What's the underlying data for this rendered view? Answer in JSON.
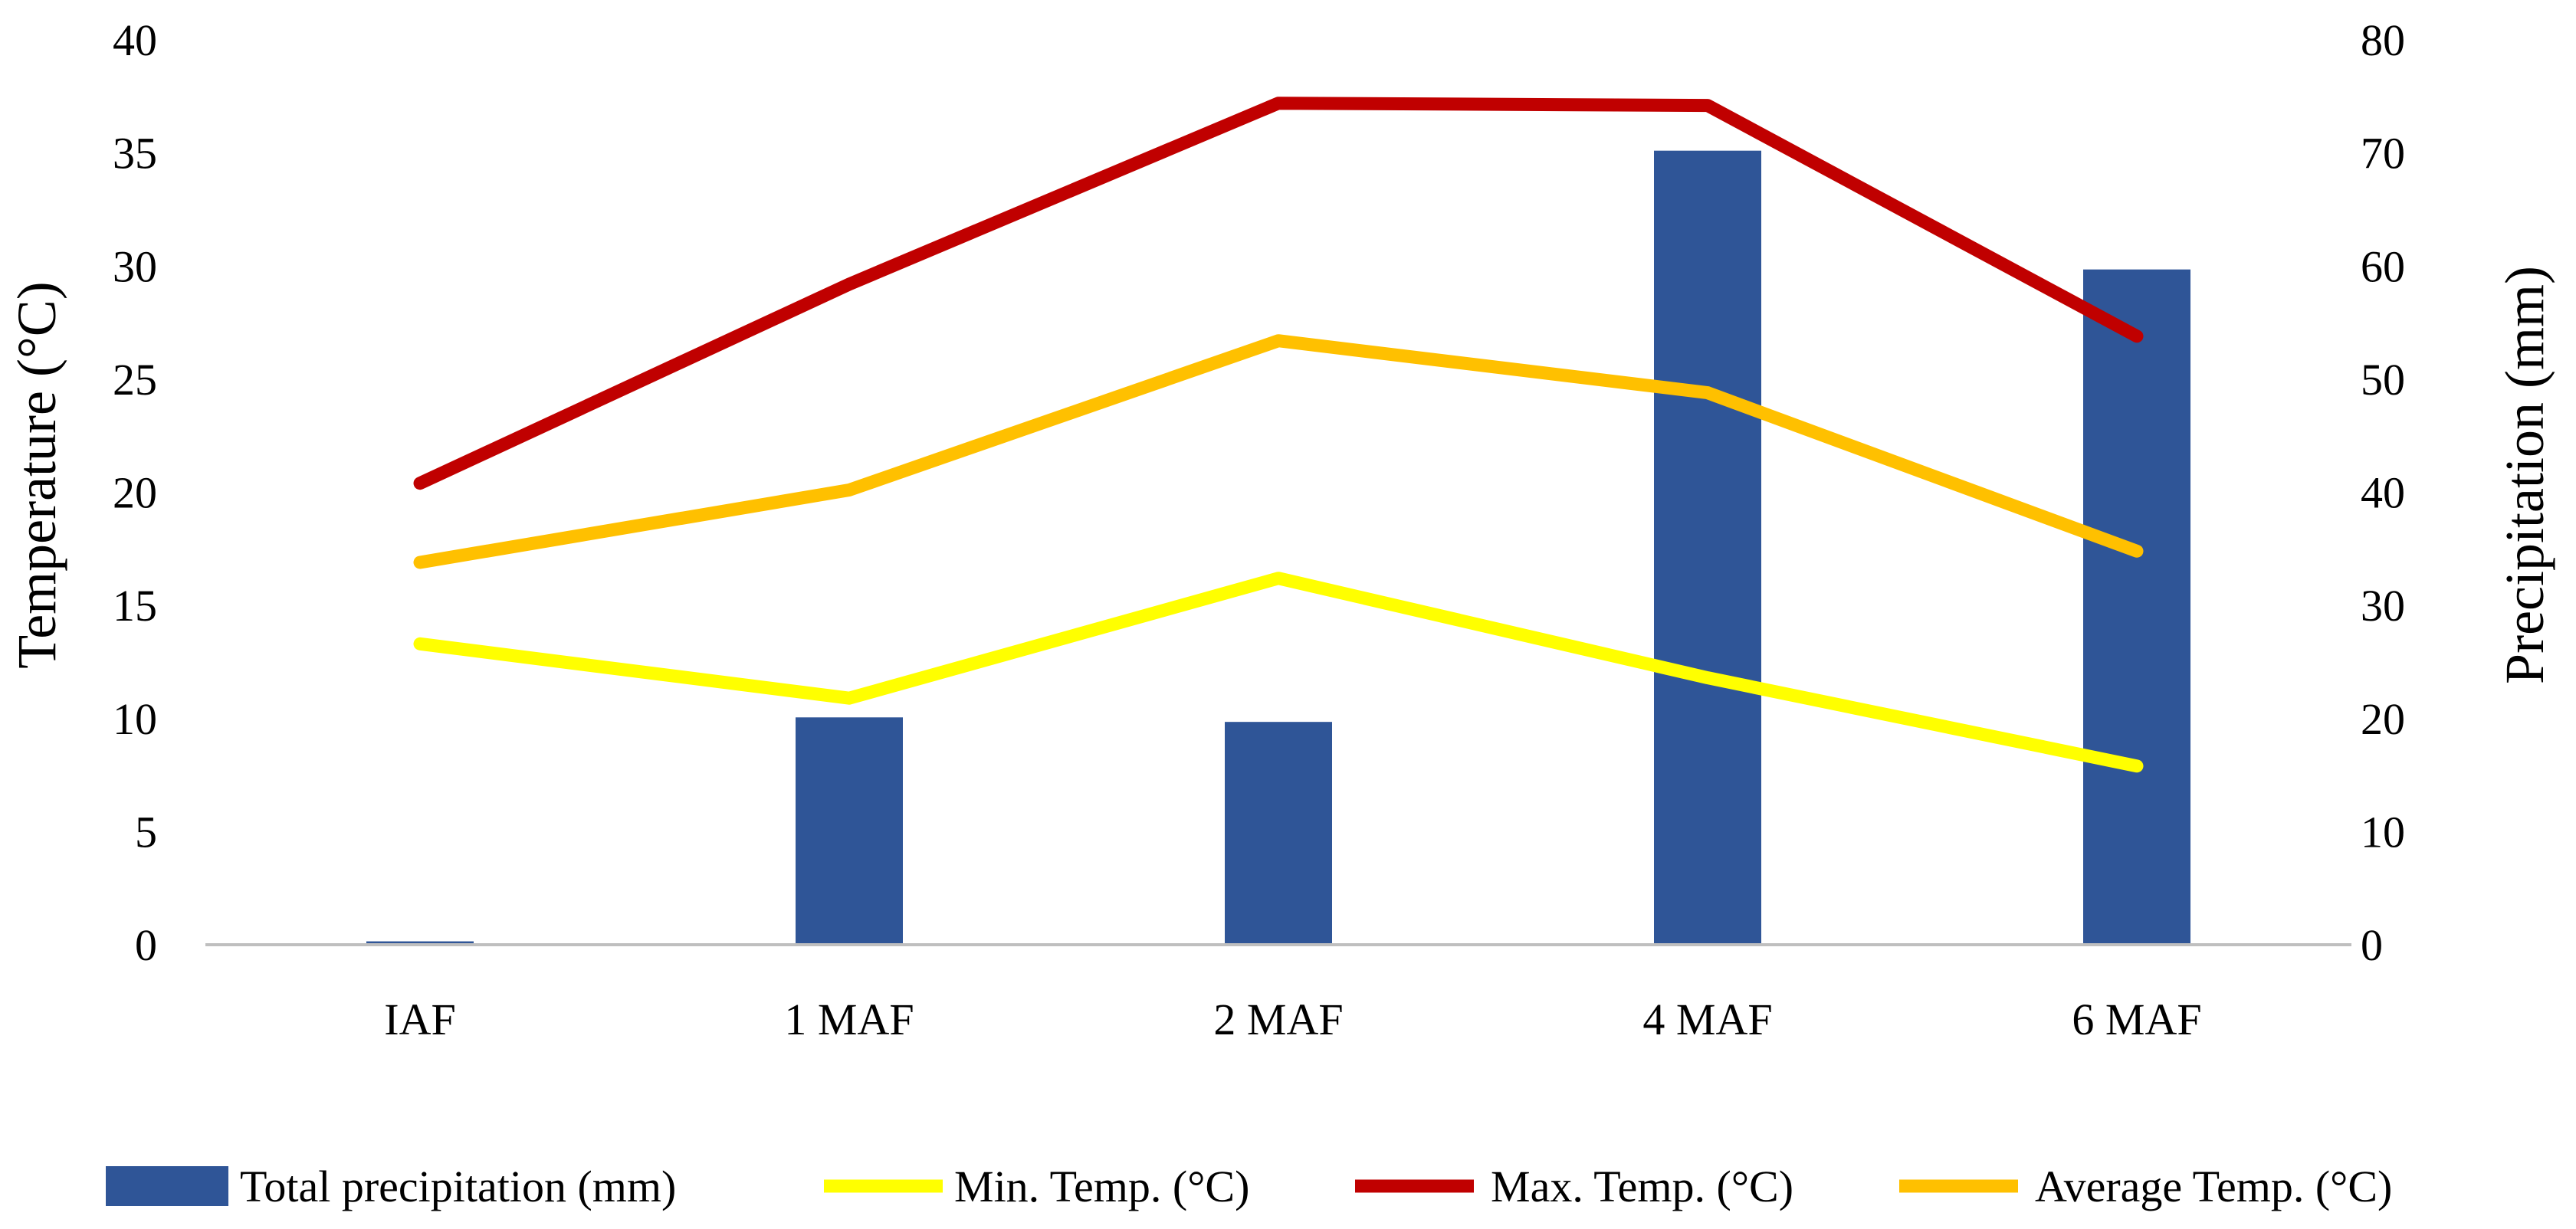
{
  "chart_data": {
    "type": "bar+line",
    "categories": [
      "IAF",
      "1 MAF",
      "2 MAF",
      "4 MAF",
      "6 MAF"
    ],
    "bar_series": {
      "name": "Total precipitation (mm)",
      "axis": "right",
      "color": "#2F5597",
      "values": [
        0.3,
        20.1,
        19.7,
        70.2,
        59.7
      ]
    },
    "line_series": [
      {
        "name": "Min. Temp. (°C)",
        "color": "#FFFF00",
        "values": [
          13.3,
          10.9,
          16.2,
          11.8,
          7.9
        ]
      },
      {
        "name": "Max. Temp. (°C)",
        "color": "#C00000",
        "values": [
          20.4,
          29.2,
          37.2,
          37.1,
          26.9
        ]
      },
      {
        "name": "Average Temp. (°C)",
        "color": "#FFC000",
        "values": [
          16.9,
          20.1,
          26.7,
          24.4,
          17.4
        ]
      }
    ],
    "y_left": {
      "label": "Temperature (°C)",
      "min": 0,
      "max": 40,
      "step": 5,
      "ticks": [
        "0",
        "5",
        "10",
        "15",
        "20",
        "25",
        "30",
        "35",
        "40"
      ]
    },
    "y_right": {
      "label": "Precipitation (mm)",
      "min": 0,
      "max": 80,
      "step": 10,
      "ticks": [
        "0",
        "10",
        "20",
        "30",
        "40",
        "50",
        "60",
        "70",
        "80"
      ]
    },
    "grid": false,
    "legend": "bottom"
  }
}
